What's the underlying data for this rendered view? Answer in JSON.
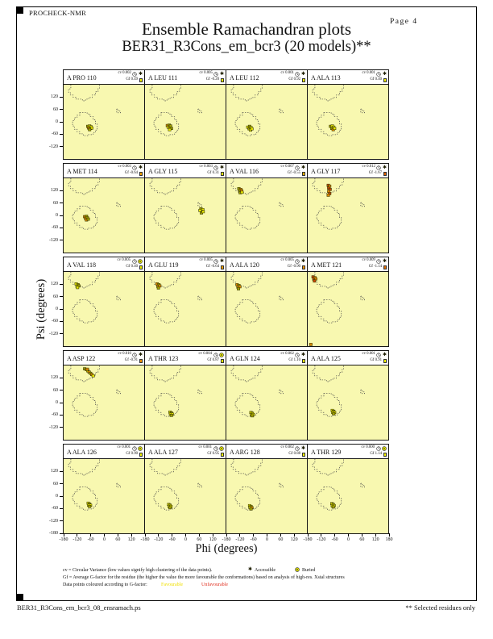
{
  "page": {
    "app_name": "PROCHECK-NMR",
    "page_label": "Page 4",
    "title": "Ensemble Ramachandran plots",
    "subtitle": "BER31_R3Cons_em_bcr3 (20 models)**",
    "footer_file": "BER31_R3Cons_em_bcr3_08_ensramach.ps",
    "footer_note": "** Selected residues only"
  },
  "legend": {
    "cv_line": "cv = Circular Variance (low values signify high clustering of the data points).",
    "accessible_label": "Accessible",
    "buried_label": "Buried",
    "gf_line": "Gf = Average G-factor for the residue (the higher the value the more favourable the conformations)  based on analysis of high-res. Xstal structures",
    "colour_line": "Data points coloured according to G-factor:",
    "favourable_label": "Favourable",
    "unfavourable_label": "Unfavourable"
  },
  "chart_data": {
    "type": "scatter",
    "plot_kind": "ramachandran-ensemble-grid",
    "xlabel": "Phi (degrees)",
    "ylabel": "Psi (degrees)",
    "xlim": [
      -180,
      180
    ],
    "ylim": [
      -180,
      180
    ],
    "x_ticks": [
      -180,
      -120,
      -60,
      0,
      60,
      120
    ],
    "x_end_tick": 180,
    "y_ticks": [
      120,
      60,
      0,
      -60,
      -120
    ],
    "y_end_tick": -180,
    "grid": {
      "columns": 4,
      "rows": 5
    },
    "regions_outlined": [
      "core-beta",
      "core-alpha",
      "core-left-handed-alpha"
    ],
    "point_colors": {
      "y": "#e8e800",
      "d": "#a0a000",
      "o": "#e08800",
      "r": "#cc4400"
    },
    "plot_bg": "#f8f8b0",
    "subplots": [
      {
        "label": "A PRO 110",
        "cv": "0.002",
        "gf": "0.49",
        "accessibility": "accessible",
        "gf_color": "#f0f000",
        "points": [
          [
            -72,
            -22,
            "d"
          ],
          [
            -64,
            -20,
            "y"
          ],
          [
            -58,
            -24,
            "y"
          ],
          [
            -68,
            -30,
            "o"
          ],
          [
            -60,
            -32,
            "d"
          ],
          [
            -54,
            -30,
            "y"
          ],
          [
            -64,
            -38,
            "d"
          ]
        ]
      },
      {
        "label": "A LEU 111",
        "cv": "0.005",
        "gf": "-0.20",
        "accessibility": "accessible",
        "gf_color": "#f0f000",
        "points": [
          [
            -80,
            -18,
            "o"
          ],
          [
            -72,
            -16,
            "d"
          ],
          [
            -76,
            -26,
            "y"
          ],
          [
            -68,
            -26,
            "o"
          ],
          [
            -62,
            -32,
            "d"
          ],
          [
            -70,
            -38,
            "y"
          ],
          [
            -66,
            -20,
            "d"
          ]
        ]
      },
      {
        "label": "A LEU 112",
        "cv": "0.001",
        "gf": "0.92",
        "accessibility": "accessible",
        "gf_color": "#f0f000",
        "points": [
          [
            -84,
            -26,
            "y"
          ],
          [
            -76,
            -22,
            "d"
          ],
          [
            -70,
            -28,
            "y"
          ],
          [
            -78,
            -34,
            "d"
          ],
          [
            -72,
            -40,
            "y"
          ],
          [
            -66,
            -34,
            "y"
          ]
        ]
      },
      {
        "label": "A ALA 113",
        "cv": "0.001",
        "gf": "0.40",
        "accessibility": "accessible",
        "gf_color": "#f0f000",
        "points": [
          [
            -78,
            -22,
            "d"
          ],
          [
            -70,
            -20,
            "y"
          ],
          [
            -64,
            -26,
            "y"
          ],
          [
            -72,
            -32,
            "d"
          ],
          [
            -66,
            -38,
            "o"
          ],
          [
            -60,
            -32,
            "y"
          ]
        ]
      },
      {
        "label": "A MET 114",
        "cv": "0.003",
        "gf": "-0.64",
        "accessibility": "accessible",
        "gf_color": "#f0a000",
        "points": [
          [
            -86,
            -6,
            "o"
          ],
          [
            -78,
            -4,
            "d"
          ],
          [
            -82,
            -14,
            "o"
          ],
          [
            -74,
            -12,
            "d"
          ],
          [
            -78,
            -22,
            "o"
          ],
          [
            -70,
            -18,
            "d"
          ]
        ]
      },
      {
        "label": "A GLY 115",
        "cv": "0.003",
        "gf": "0.31",
        "accessibility": "accessible",
        "gf_color": "#f0f000",
        "points": [
          [
            70,
            32,
            "d"
          ],
          [
            78,
            28,
            "y"
          ],
          [
            74,
            20,
            "d"
          ],
          [
            66,
            24,
            "y"
          ],
          [
            72,
            12,
            "d"
          ],
          [
            80,
            18,
            "y"
          ]
        ]
      },
      {
        "label": "A VAL 116",
        "cv": "0.007",
        "gf": "-0.55",
        "accessibility": "accessible",
        "gf_color": "#f0b000",
        "points": [
          [
            -124,
            130,
            "d"
          ],
          [
            -116,
            126,
            "o"
          ],
          [
            -120,
            118,
            "d"
          ],
          [
            -112,
            120,
            "o"
          ],
          [
            -118,
            110,
            "d"
          ],
          [
            -110,
            112,
            "y"
          ]
        ]
      },
      {
        "label": "A GLY 117",
        "cv": "0.012",
        "gf": "-1.67",
        "accessibility": "accessible",
        "gf_color": "#e06000",
        "points": [
          [
            -88,
            146,
            "r"
          ],
          [
            -82,
            142,
            "o"
          ],
          [
            -86,
            132,
            "r"
          ],
          [
            -80,
            126,
            "r"
          ],
          [
            -86,
            116,
            "o"
          ],
          [
            -82,
            106,
            "r"
          ],
          [
            -88,
            98,
            "o"
          ]
        ]
      },
      {
        "label": "A VAL 118",
        "cv": "0.005",
        "gf": "0.40",
        "accessibility": "buried",
        "gf_color": "#f0f000",
        "points": [
          [
            -124,
            122,
            "y"
          ],
          [
            -116,
            118,
            "d"
          ],
          [
            -120,
            110,
            "y"
          ],
          [
            -112,
            112,
            "d"
          ],
          [
            -118,
            104,
            "y"
          ]
        ]
      },
      {
        "label": "A GLU 119",
        "cv": "0.005",
        "gf": "-0.64",
        "accessibility": "accessible",
        "gf_color": "#f0a000",
        "points": [
          [
            -126,
            122,
            "o"
          ],
          [
            -118,
            118,
            "d"
          ],
          [
            -122,
            110,
            "o"
          ],
          [
            -114,
            112,
            "o"
          ],
          [
            -120,
            102,
            "d"
          ]
        ]
      },
      {
        "label": "A ALA 120",
        "cv": "0.005",
        "gf": "-0.90",
        "accessibility": "accessible",
        "gf_color": "#f09000",
        "points": [
          [
            -132,
            118,
            "o"
          ],
          [
            -124,
            114,
            "d"
          ],
          [
            -128,
            106,
            "o"
          ],
          [
            -120,
            108,
            "o"
          ],
          [
            -126,
            98,
            "d"
          ]
        ]
      },
      {
        "label": "A MET 121",
        "cv": "0.009",
        "gf": "-1.14",
        "accessibility": "accessible",
        "gf_color": "#e87000",
        "points": [
          [
            -156,
            156,
            "r"
          ],
          [
            -148,
            152,
            "o"
          ],
          [
            -152,
            144,
            "r"
          ],
          [
            -144,
            146,
            "o"
          ],
          [
            -150,
            136,
            "r"
          ],
          [
            -166,
            -172,
            "o"
          ]
        ]
      },
      {
        "label": "A ASP 122",
        "cv": "0.010",
        "gf": "-0.91",
        "accessibility": "accessible",
        "gf_color": "#f09000",
        "points": [
          [
            -86,
            164,
            "d"
          ],
          [
            -78,
            160,
            "o"
          ],
          [
            -72,
            154,
            "y"
          ],
          [
            -66,
            148,
            "o"
          ],
          [
            -60,
            142,
            "d"
          ],
          [
            -54,
            136,
            "o"
          ],
          [
            -48,
            130,
            "y"
          ],
          [
            -74,
            162,
            "o"
          ]
        ]
      },
      {
        "label": "A THR 123",
        "cv": "0.004",
        "gf": "0.87",
        "accessibility": "buried",
        "gf_color": "#f0f000",
        "points": [
          [
            -68,
            -46,
            "y"
          ],
          [
            -62,
            -50,
            "d"
          ],
          [
            -66,
            -56,
            "y"
          ],
          [
            -58,
            -56,
            "y"
          ],
          [
            -62,
            -62,
            "d"
          ]
        ]
      },
      {
        "label": "A GLN 124",
        "cv": "0.002",
        "gf": "1.10",
        "accessibility": "accessible",
        "gf_color": "#f0f000",
        "points": [
          [
            -70,
            -48,
            "y"
          ],
          [
            -64,
            -52,
            "d"
          ],
          [
            -68,
            -58,
            "y"
          ],
          [
            -60,
            -58,
            "y"
          ],
          [
            -64,
            -64,
            "d"
          ]
        ]
      },
      {
        "label": "A ALA 125",
        "cv": "0.001",
        "gf": "0.91",
        "accessibility": "accessible",
        "gf_color": "#f0f000",
        "points": [
          [
            -70,
            -38,
            "y"
          ],
          [
            -64,
            -42,
            "d"
          ],
          [
            -68,
            -48,
            "y"
          ],
          [
            -60,
            -48,
            "y"
          ],
          [
            -64,
            -54,
            "d"
          ]
        ]
      },
      {
        "label": "A ALA 126",
        "cv": "0.001",
        "gf": "0.90",
        "accessibility": "buried",
        "gf_color": "#f0f000",
        "points": [
          [
            -70,
            -34,
            "y"
          ],
          [
            -64,
            -38,
            "d"
          ],
          [
            -68,
            -44,
            "y"
          ],
          [
            -60,
            -44,
            "y"
          ],
          [
            -64,
            -50,
            "d"
          ]
        ]
      },
      {
        "label": "A ALA 127",
        "cv": "0.001",
        "gf": "0.95",
        "accessibility": "buried",
        "gf_color": "#f0f000",
        "points": [
          [
            -74,
            -40,
            "y"
          ],
          [
            -68,
            -44,
            "d"
          ],
          [
            -72,
            -50,
            "y"
          ],
          [
            -64,
            -50,
            "y"
          ],
          [
            -68,
            -56,
            "d"
          ]
        ]
      },
      {
        "label": "A ARG 128",
        "cv": "0.002",
        "gf": "0.88",
        "accessibility": "accessible",
        "gf_color": "#f0f000",
        "points": [
          [
            -76,
            -46,
            "y"
          ],
          [
            -70,
            -50,
            "d"
          ],
          [
            -74,
            -56,
            "y"
          ],
          [
            -66,
            -56,
            "o"
          ],
          [
            -70,
            -62,
            "d"
          ]
        ]
      },
      {
        "label": "A THR 129",
        "cv": "0.000",
        "gf": "1.14",
        "accessibility": "buried",
        "gf_color": "#f0f000",
        "points": [
          [
            -72,
            -36,
            "y"
          ],
          [
            -66,
            -40,
            "d"
          ],
          [
            -70,
            -46,
            "y"
          ],
          [
            -62,
            -46,
            "y"
          ],
          [
            -66,
            -52,
            "d"
          ]
        ]
      }
    ]
  }
}
